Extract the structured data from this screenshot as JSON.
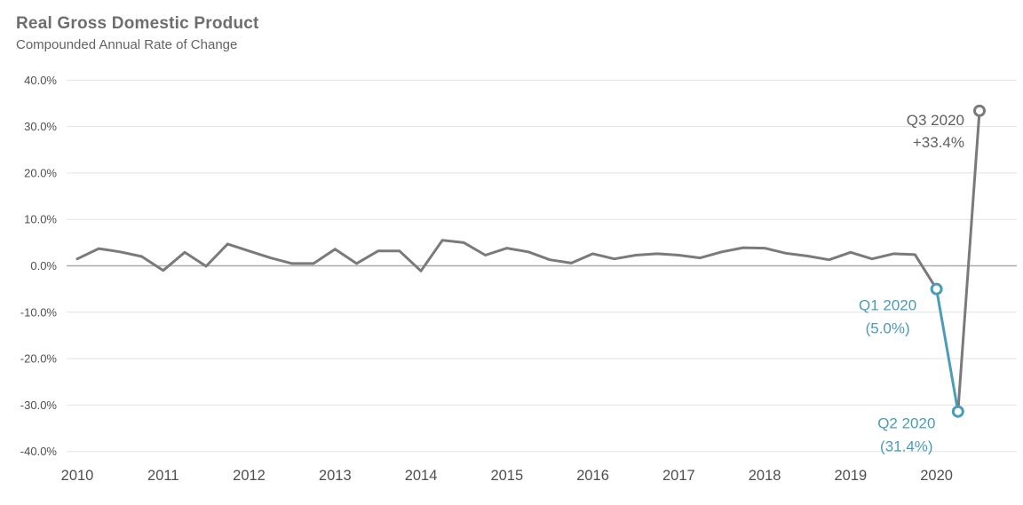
{
  "header": {
    "title": "Real Gross Domestic Product",
    "subtitle": "Compounded Annual Rate of Change"
  },
  "chart_data": {
    "type": "line",
    "title": "Real Gross Domestic Product",
    "subtitle": "Compounded Annual Rate of Change",
    "unit": "percent",
    "grid": "horizontal",
    "legend_position": "none",
    "ylim": [
      -40,
      40
    ],
    "x": [
      "2010 Q1",
      "2010 Q2",
      "2010 Q3",
      "2010 Q4",
      "2011 Q1",
      "2011 Q2",
      "2011 Q3",
      "2011 Q4",
      "2012 Q1",
      "2012 Q2",
      "2012 Q3",
      "2012 Q4",
      "2013 Q1",
      "2013 Q2",
      "2013 Q3",
      "2013 Q4",
      "2014 Q1",
      "2014 Q2",
      "2014 Q3",
      "2014 Q4",
      "2015 Q1",
      "2015 Q2",
      "2015 Q3",
      "2015 Q4",
      "2016 Q1",
      "2016 Q2",
      "2016 Q3",
      "2016 Q4",
      "2017 Q1",
      "2017 Q2",
      "2017 Q3",
      "2017 Q4",
      "2018 Q1",
      "2018 Q2",
      "2018 Q3",
      "2018 Q4",
      "2019 Q1",
      "2019 Q2",
      "2019 Q3",
      "2019 Q4",
      "2020 Q1",
      "2020 Q2",
      "2020 Q3"
    ],
    "values": [
      1.5,
      3.7,
      3.0,
      2.0,
      -1.0,
      2.9,
      -0.1,
      4.7,
      3.2,
      1.7,
      0.5,
      0.5,
      3.6,
      0.5,
      3.2,
      3.2,
      -1.1,
      5.5,
      5.0,
      2.3,
      3.8,
      3.0,
      1.3,
      0.6,
      2.6,
      1.5,
      2.3,
      2.6,
      2.3,
      1.7,
      3.0,
      3.9,
      3.8,
      2.7,
      2.1,
      1.3,
      2.9,
      1.5,
      2.6,
      2.4,
      -5.0,
      -31.4,
      33.4
    ],
    "y_ticks": [
      {
        "value": 40,
        "label": "40.0%"
      },
      {
        "value": 30,
        "label": "30.0%"
      },
      {
        "value": 20,
        "label": "20.0%"
      },
      {
        "value": 10,
        "label": "10.0%"
      },
      {
        "value": 0,
        "label": "0.0%"
      },
      {
        "value": -10,
        "label": "-10.0%"
      },
      {
        "value": -20,
        "label": "-20.0%"
      },
      {
        "value": -30,
        "label": "-30.0%"
      },
      {
        "value": -40,
        "label": "-40.0%"
      }
    ],
    "x_ticks": [
      {
        "label": "2010",
        "index": 0
      },
      {
        "label": "2011",
        "index": 4
      },
      {
        "label": "2012",
        "index": 8
      },
      {
        "label": "2013",
        "index": 12
      },
      {
        "label": "2014",
        "index": 16
      },
      {
        "label": "2015",
        "index": 20
      },
      {
        "label": "2016",
        "index": 24
      },
      {
        "label": "2017",
        "index": 28
      },
      {
        "label": "2018",
        "index": 32
      },
      {
        "label": "2019",
        "index": 36
      },
      {
        "label": "2020",
        "index": 40
      }
    ],
    "colors": {
      "line_gray": "#7a7a7a",
      "accent_teal": "#4a9cb9",
      "text_gray": "#5f5f5f",
      "grid": "#e3e3e3",
      "zero_line": "#ababab",
      "axis_text": "#4f4f4f"
    },
    "segments": [
      {
        "from": 0,
        "to": 40,
        "color": "line_gray"
      },
      {
        "from": 40,
        "to": 41,
        "color": "accent_teal"
      },
      {
        "from": 41,
        "to": 42,
        "color": "line_gray"
      }
    ],
    "markers": [
      {
        "index": 40,
        "color": "accent_teal"
      },
      {
        "index": 41,
        "color": "accent_teal"
      },
      {
        "index": 42,
        "color": "line_gray"
      }
    ],
    "annotations": [
      {
        "lines": [
          "Q3 2020",
          "+33.4%"
        ],
        "index": 42,
        "color": "text_gray",
        "anchor": "end",
        "dx": -17,
        "dy1": 16,
        "dy2": 41
      },
      {
        "lines": [
          "Q1 2020",
          "(5.0%)"
        ],
        "index": 40,
        "color": "accent_teal",
        "anchor": "middle",
        "dx": -55,
        "dy1": 24,
        "dy2": 50
      },
      {
        "lines": [
          "Q2 2020",
          "(31.4%)"
        ],
        "index": 41,
        "color": "accent_teal",
        "anchor": "middle",
        "dx": -58,
        "dy1": 19,
        "dy2": 45
      }
    ]
  }
}
